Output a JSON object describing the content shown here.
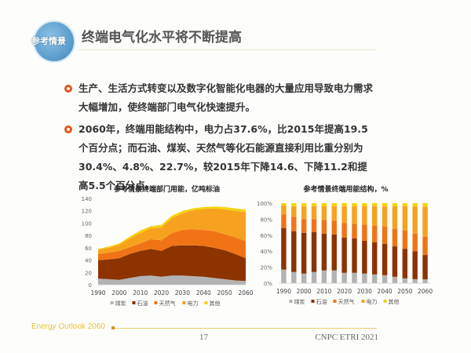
{
  "header": {
    "logo_text": "参考情景",
    "title": "终端电气化水平将不断提高"
  },
  "bullets": [
    "生产、生活方式转变以及数字化智能化电器的大量应用导致电力需求大幅增加，使终端部门电气化快速提升。",
    "2060年，终端用能结构中，电力占37.6%，比2015年提高19.5个百分点；而石油、煤炭、天然气等化石能源直接利用比重分别为30.4%、4.8%、22.7%，较2015年下降14.6、下降11.2和提高5.5个百分点。"
  ],
  "colors": {
    "煤炭": "#b3b3b3",
    "石油": "#8c3300",
    "天然气": "#f07416",
    "电力": "#f7a21e",
    "其他": "#f5d30a",
    "accent": "#e0561a"
  },
  "chart_data": [
    {
      "type": "area",
      "stacked": true,
      "title": "参考情景终端部门用能，亿吨标油",
      "x": [
        1990,
        1995,
        2000,
        2005,
        2010,
        2015,
        2020,
        2025,
        2030,
        2035,
        2040,
        2045,
        2050,
        2055,
        2060
      ],
      "xticks": [
        "1990",
        "2000",
        "2010",
        "2020",
        "2030",
        "2040",
        "2050",
        "2060"
      ],
      "yticks": [
        "0",
        "20",
        "40",
        "60",
        "80",
        "100",
        "120",
        "140"
      ],
      "ylim": [
        0,
        140
      ],
      "legend": "bottom",
      "series": [
        {
          "name": "煤炭",
          "values": [
            10,
            9,
            8,
            11,
            14,
            15,
            13,
            15,
            15,
            14,
            13,
            11,
            9,
            7,
            6
          ]
        },
        {
          "name": "石油",
          "values": [
            30,
            32,
            35,
            39,
            41,
            43,
            42,
            48,
            49,
            50,
            50,
            49,
            47,
            43,
            37
          ]
        },
        {
          "name": "天然气",
          "values": [
            10,
            11,
            12,
            11,
            12,
            16,
            17,
            21,
            25,
            26,
            26,
            27,
            26,
            27,
            28
          ]
        },
        {
          "name": "电力",
          "values": [
            7,
            8,
            10,
            14,
            17,
            18,
            21,
            24,
            27,
            31,
            34,
            37,
            40,
            43,
            47
          ]
        },
        {
          "name": "其他",
          "values": [
            1,
            2,
            2,
            3,
            4,
            3,
            4,
            4,
            4,
            3,
            3,
            3,
            4,
            4,
            4
          ]
        }
      ]
    },
    {
      "type": "bar",
      "stacked": true,
      "title": "参考情景终端用能结构，%",
      "categories": [
        1990,
        1995,
        2000,
        2005,
        2010,
        2015,
        2020,
        2025,
        2030,
        2035,
        2040,
        2045,
        2050,
        2055,
        2060
      ],
      "xticks": [
        "1990",
        "2000",
        "2010",
        "2020",
        "2030",
        "2040",
        "2050",
        "2060"
      ],
      "yticks": [
        "0%",
        "20%",
        "40%",
        "60%",
        "80%",
        "100%"
      ],
      "ylim": [
        0,
        100
      ],
      "legend": "bottom",
      "series": [
        {
          "name": "煤炭",
          "values": [
            17,
            14,
            12,
            14,
            16,
            16,
            13,
            13,
            12,
            11,
            10,
            8,
            6,
            5,
            4.8
          ]
        },
        {
          "name": "石油",
          "values": [
            52,
            51,
            51,
            50,
            46,
            45,
            44,
            43,
            41,
            40,
            39,
            38,
            37,
            35,
            30.4
          ]
        },
        {
          "name": "天然气",
          "values": [
            17,
            18,
            17,
            16,
            17,
            17,
            18,
            18,
            20,
            21,
            22,
            22,
            23,
            22,
            22.7
          ]
        },
        {
          "name": "电力",
          "values": [
            11,
            13,
            16,
            16,
            17,
            18,
            21,
            22,
            23,
            24,
            25,
            28,
            30,
            34,
            37.6
          ]
        },
        {
          "name": "其他",
          "values": [
            3,
            4,
            4,
            4,
            4,
            4,
            4,
            4,
            4,
            4,
            4,
            4,
            4,
            4,
            4.5
          ]
        }
      ]
    }
  ],
  "footer": {
    "left": "Energy Outlook 2060",
    "page": "17",
    "org": "CNPC ETRI 2021"
  }
}
